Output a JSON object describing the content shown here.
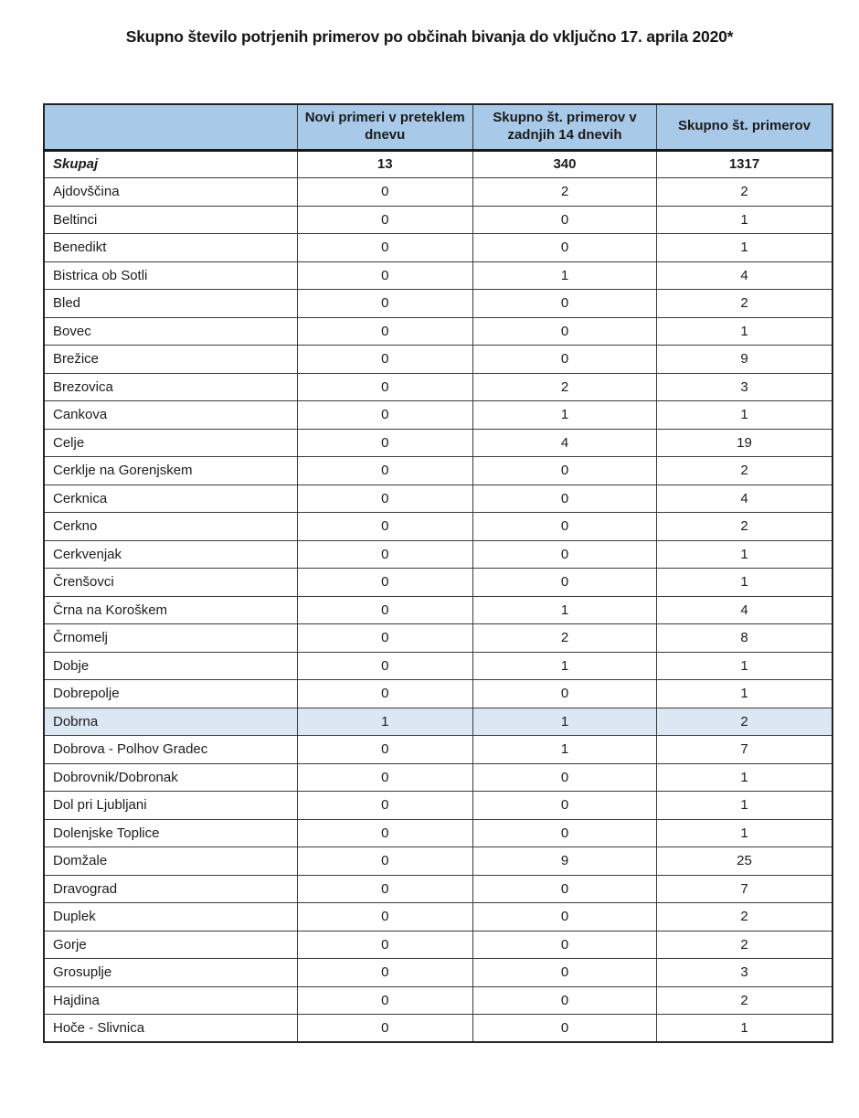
{
  "title": "Skupno število potrjenih primerov po občinah bivanja do vključno 17. aprila 2020*",
  "colors": {
    "header_bg": "#a9c9e9",
    "highlight_bg": "#dbe7f3",
    "border": "#3b3b3b",
    "text": "#1c1c1c"
  },
  "table": {
    "columns": {
      "name": "",
      "new_cases": "Novi primeri v preteklem dnevu",
      "last_14_days": "Skupno št. primerov v zadnjih 14 dnevih",
      "total": "Skupno št. primerov"
    },
    "summary_row": {
      "name": "Skupaj",
      "values": [
        "13",
        "340",
        "1317"
      ],
      "highlight": false
    },
    "rows": [
      {
        "name": "Ajdovščina",
        "values": [
          "0",
          "2",
          "2"
        ],
        "highlight": false
      },
      {
        "name": "Beltinci",
        "values": [
          "0",
          "0",
          "1"
        ],
        "highlight": false
      },
      {
        "name": "Benedikt",
        "values": [
          "0",
          "0",
          "1"
        ],
        "highlight": false
      },
      {
        "name": "Bistrica ob Sotli",
        "values": [
          "0",
          "1",
          "4"
        ],
        "highlight": false
      },
      {
        "name": "Bled",
        "values": [
          "0",
          "0",
          "2"
        ],
        "highlight": false
      },
      {
        "name": "Bovec",
        "values": [
          "0",
          "0",
          "1"
        ],
        "highlight": false
      },
      {
        "name": "Brežice",
        "values": [
          "0",
          "0",
          "9"
        ],
        "highlight": false
      },
      {
        "name": "Brezovica",
        "values": [
          "0",
          "2",
          "3"
        ],
        "highlight": false
      },
      {
        "name": "Cankova",
        "values": [
          "0",
          "1",
          "1"
        ],
        "highlight": false
      },
      {
        "name": "Celje",
        "values": [
          "0",
          "4",
          "19"
        ],
        "highlight": false
      },
      {
        "name": "Cerklje na Gorenjskem",
        "values": [
          "0",
          "0",
          "2"
        ],
        "highlight": false
      },
      {
        "name": "Cerknica",
        "values": [
          "0",
          "0",
          "4"
        ],
        "highlight": false
      },
      {
        "name": "Cerkno",
        "values": [
          "0",
          "0",
          "2"
        ],
        "highlight": false
      },
      {
        "name": "Cerkvenjak",
        "values": [
          "0",
          "0",
          "1"
        ],
        "highlight": false
      },
      {
        "name": "Črenšovci",
        "values": [
          "0",
          "0",
          "1"
        ],
        "highlight": false
      },
      {
        "name": "Črna na Koroškem",
        "values": [
          "0",
          "1",
          "4"
        ],
        "highlight": false
      },
      {
        "name": "Črnomelj",
        "values": [
          "0",
          "2",
          "8"
        ],
        "highlight": false
      },
      {
        "name": "Dobje",
        "values": [
          "0",
          "1",
          "1"
        ],
        "highlight": false
      },
      {
        "name": "Dobrepolje",
        "values": [
          "0",
          "0",
          "1"
        ],
        "highlight": false
      },
      {
        "name": "Dobrna",
        "values": [
          "1",
          "1",
          "2"
        ],
        "highlight": true
      },
      {
        "name": "Dobrova - Polhov Gradec",
        "values": [
          "0",
          "1",
          "7"
        ],
        "highlight": false
      },
      {
        "name": "Dobrovnik/Dobronak",
        "values": [
          "0",
          "0",
          "1"
        ],
        "highlight": false
      },
      {
        "name": "Dol pri Ljubljani",
        "values": [
          "0",
          "0",
          "1"
        ],
        "highlight": false
      },
      {
        "name": "Dolenjske Toplice",
        "values": [
          "0",
          "0",
          "1"
        ],
        "highlight": false
      },
      {
        "name": "Domžale",
        "values": [
          "0",
          "9",
          "25"
        ],
        "highlight": false
      },
      {
        "name": "Dravograd",
        "values": [
          "0",
          "0",
          "7"
        ],
        "highlight": false
      },
      {
        "name": "Duplek",
        "values": [
          "0",
          "0",
          "2"
        ],
        "highlight": false
      },
      {
        "name": "Gorje",
        "values": [
          "0",
          "0",
          "2"
        ],
        "highlight": false
      },
      {
        "name": "Grosuplje",
        "values": [
          "0",
          "0",
          "3"
        ],
        "highlight": false
      },
      {
        "name": "Hajdina",
        "values": [
          "0",
          "0",
          "2"
        ],
        "highlight": false
      },
      {
        "name": "Hoče - Slivnica",
        "values": [
          "0",
          "0",
          "1"
        ],
        "highlight": false
      }
    ]
  }
}
